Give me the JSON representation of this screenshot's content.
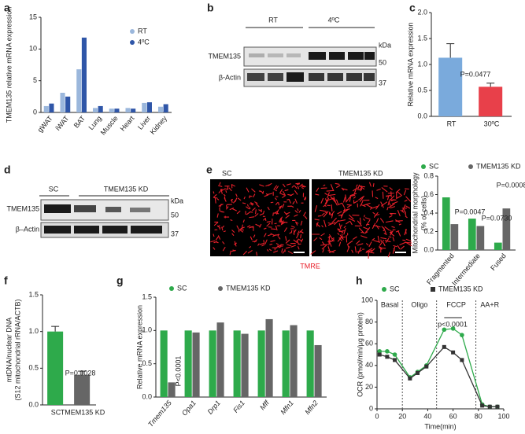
{
  "figure": {
    "b": {
      "panel": "b",
      "groups": [
        "RT",
        "4ºC"
      ],
      "unit": "kDa",
      "rows": [
        "TMEM135",
        "β-Actin"
      ],
      "markers": [
        "50",
        "37"
      ]
    },
    "d": {
      "panel": "d",
      "groups": [
        "SC",
        "TMEM135 KD"
      ],
      "unit": "kDa",
      "rows": [
        "TMEM135",
        "β–Actin"
      ],
      "markers": [
        "50",
        "37"
      ]
    },
    "e": {
      "panel": "e",
      "images": [
        "SC",
        "TMEM135 KD"
      ],
      "stain": "TMRE"
    }
  },
  "chart_data": [
    {
      "panel": "a",
      "type": "bar",
      "ylabel": "TMEM135 relative mRNA expression",
      "categories": [
        "gWAT",
        "iWAT",
        "BAT",
        "Lung",
        "Muscle",
        "Heart",
        "Liver",
        "Kidney"
      ],
      "series": [
        {
          "name": "RT",
          "color": "#9bb7dc",
          "values": [
            1.0,
            3.1,
            6.8,
            0.7,
            0.6,
            0.7,
            1.5,
            0.9
          ]
        },
        {
          "name": "4ºC",
          "color": "#2f56a8",
          "values": [
            1.4,
            2.5,
            11.8,
            1.0,
            0.6,
            0.6,
            1.6,
            1.3
          ]
        }
      ],
      "ylim": [
        0,
        15
      ],
      "yticks": [
        0,
        5,
        10,
        15
      ]
    },
    {
      "panel": "c",
      "type": "bar",
      "ylabel": "Relative mRNA expression",
      "categories": [
        "RT",
        "30ºC"
      ],
      "values": [
        1.13,
        0.57
      ],
      "errors": [
        0.27,
        0.07
      ],
      "colors": [
        "#7aaadc",
        "#e8404a"
      ],
      "ylim": [
        0,
        2
      ],
      "yticks": [
        {
          "value": 0,
          "label": "0.0"
        },
        {
          "value": 0.5,
          "label": "0.5"
        },
        {
          "value": 1,
          "label": "1.0"
        },
        {
          "value": 1.5,
          "label": "1.5"
        },
        {
          "value": 2,
          "label": "2.0"
        }
      ],
      "annotations": [
        "P=0.0477"
      ]
    },
    {
      "type": "bar",
      "ylabel": [
        "Mitochondrial morphology",
        "(% of cells)"
      ],
      "categories": [
        "Fragmented",
        "Intermediate",
        "Fused"
      ],
      "series": [
        {
          "name": "SC",
          "color": "#2eaa4b",
          "values": [
            0.57,
            0.34,
            0.08
          ]
        },
        {
          "name": "TMEM135 KD",
          "color": "#666666",
          "values": [
            0.28,
            0.26,
            0.45
          ]
        }
      ],
      "ylim": [
        0,
        0.8
      ],
      "yticks": [
        {
          "value": 0,
          "label": "0.0"
        },
        {
          "value": 0.2,
          "label": "0.2"
        },
        {
          "value": 0.4,
          "label": "0.4"
        },
        {
          "value": 0.6,
          "label": "0.6"
        },
        {
          "value": 0.8,
          "label": "0.8"
        }
      ],
      "annotations": [
        "P=0.0047",
        "P=0.0730",
        "P=0.0008"
      ]
    },
    {
      "panel": "f",
      "type": "bar",
      "ylabel": [
        "mtDNA/nuclear DNA",
        "(S12 mitochondrial rRNA/ACTB)"
      ],
      "categories": [
        "SC",
        "TMEM135 KD"
      ],
      "values": [
        1.0,
        0.41
      ],
      "errors": [
        0.07,
        0.05
      ],
      "colors": [
        "#2eaa4b",
        "#666666"
      ],
      "ylim": [
        0,
        1.5
      ],
      "yticks": [
        {
          "value": 0,
          "label": "0.0"
        },
        {
          "value": 0.5,
          "label": "0.5"
        },
        {
          "value": 1,
          "label": "1.0"
        },
        {
          "value": 1.5,
          "label": "1.5"
        }
      ],
      "annotations": [
        "P=0.0028"
      ]
    },
    {
      "panel": "g",
      "type": "bar",
      "ylabel": "Relative mRNA expression",
      "categories": [
        "Tmem135",
        "Opa1",
        "Drp1",
        "Fis1",
        "Mff",
        "Mfn1",
        "Mfn2"
      ],
      "series": [
        {
          "name": "SC",
          "color": "#2eaa4b",
          "values": [
            1.0,
            1.0,
            1.0,
            1.0,
            1.0,
            1.0,
            1.0
          ]
        },
        {
          "name": "TMEM135 KD",
          "color": "#666666",
          "values": [
            0.22,
            0.97,
            1.12,
            0.95,
            1.17,
            1.08,
            0.78
          ]
        }
      ],
      "ylim": [
        0,
        1.5
      ],
      "yticks": [
        {
          "value": 0,
          "label": "0.0"
        },
        {
          "value": 0.5,
          "label": "0.5"
        },
        {
          "value": 1,
          "label": "1.0"
        },
        {
          "value": 1.5,
          "label": "1.5"
        }
      ],
      "annotations": [
        "P<0.0001"
      ]
    },
    {
      "panel": "h",
      "type": "line",
      "xlabel": "Time(min)",
      "ylabel": "OCR (pmol/min/μg protein)",
      "x": [
        2,
        8,
        14,
        26,
        32,
        39,
        53,
        60,
        67,
        83,
        89,
        95
      ],
      "series": [
        {
          "name": "SC",
          "color": "#2eaa4b",
          "marker": "circle",
          "values": [
            53,
            53,
            50,
            29,
            34,
            40,
            73,
            74,
            68,
            4,
            2,
            2
          ]
        },
        {
          "name": "TMEM135  KD",
          "color": "#333333",
          "marker": "square",
          "values": [
            50,
            48,
            45,
            28,
            33,
            39,
            57,
            52,
            45,
            3,
            2,
            2
          ]
        }
      ],
      "xlim": [
        0,
        100
      ],
      "xticks": [
        0,
        20,
        40,
        60,
        80,
        100
      ],
      "ylim": [
        0,
        100
      ],
      "yticks": [
        0,
        20,
        40,
        60,
        80,
        100
      ],
      "injections": [
        20,
        47,
        78
      ],
      "phases": [
        "Basal",
        "Oligo",
        "FCCP",
        "AA+R"
      ],
      "annotations": [
        "p<0.0001"
      ]
    }
  ]
}
